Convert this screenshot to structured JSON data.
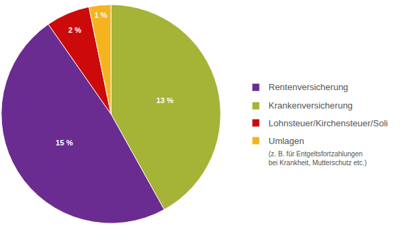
{
  "chart_data": {
    "type": "pie",
    "categories": [
      "Rentenversicherung",
      "Krankenversicherung",
      "Lohnsteuer/Kirchensteuer/Soli",
      "Umlagen"
    ],
    "values": [
      15,
      13,
      2,
      1
    ],
    "value_labels": [
      "15 %",
      "13 %",
      "2 %",
      "1 %"
    ],
    "colors": [
      "#6b2c91",
      "#a5b337",
      "#cc0a0a",
      "#f5b41e"
    ],
    "data_labels": true,
    "legend": "right",
    "annotations": [
      "(z. B. für Entgeltsfortzahlungen",
      "bei Krankheit, Mutterschutz etc.)"
    ]
  }
}
